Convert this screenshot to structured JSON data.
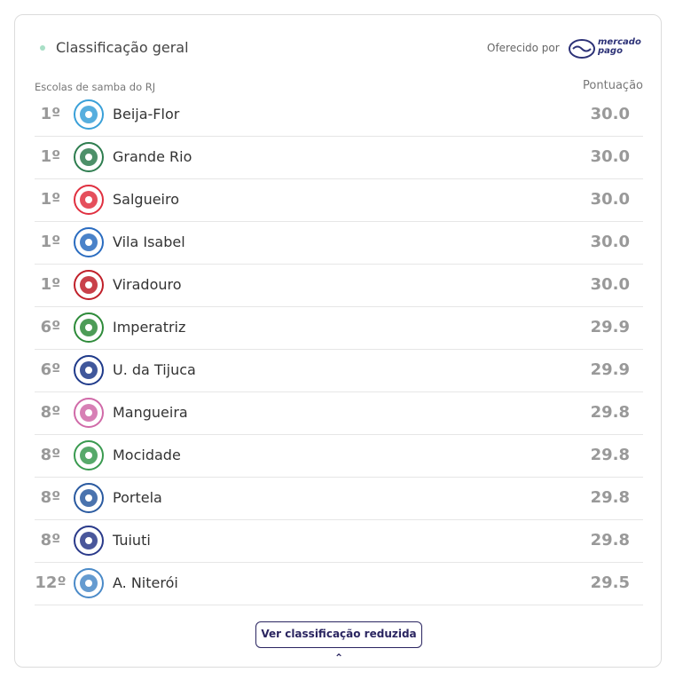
{
  "header": {
    "title": "Classificação geral",
    "sponsor_label": "Oferecido por",
    "sponsor_logo": [
      "mercado",
      "pago"
    ]
  },
  "table": {
    "columns": [
      "Escolas de samba do RJ",
      "Pontuação"
    ],
    "rows": [
      [
        "1º",
        "Beija-Flor",
        "30.0"
      ],
      [
        "1º",
        "Grande Rio",
        "30.0"
      ],
      [
        "1º",
        "Salgueiro",
        "30.0"
      ],
      [
        "1º",
        "Vila Isabel",
        "30.0"
      ],
      [
        "1º",
        "Viradouro",
        "30.0"
      ],
      [
        "6º",
        "Imperatriz",
        "29.9"
      ],
      [
        "6º",
        "U. da Tijuca",
        "29.9"
      ],
      [
        "8º",
        "Mangueira",
        "29.8"
      ],
      [
        "8º",
        "Mocidade",
        "29.8"
      ],
      [
        "8º",
        "Portela",
        "29.8"
      ],
      [
        "8º",
        "Tuiuti",
        "29.8"
      ],
      [
        "12º",
        "A. Niterói",
        "29.5"
      ]
    ]
  },
  "button": {
    "label": "Ver classificação reduzida"
  }
}
